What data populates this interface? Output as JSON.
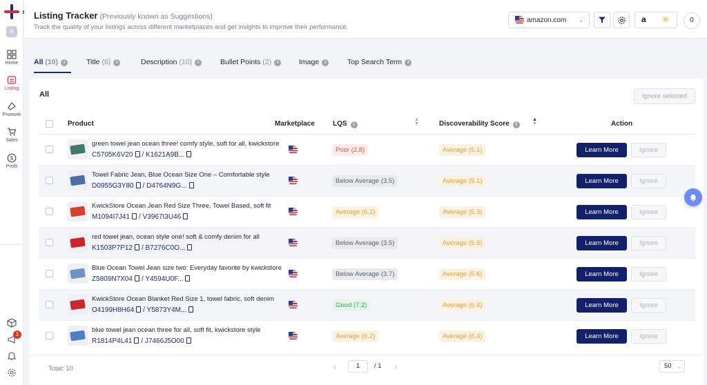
{
  "header": {
    "title": "Listing Tracker",
    "title_note": "(Previously known as Suggestions)",
    "subtitle": "Track the quality of your listings across different marketplaces and get insights to improve their performance.",
    "marketplace": "amazon.com",
    "counter": "0"
  },
  "sidebar": {
    "avatar": "R",
    "items": [
      {
        "label": "Home",
        "icon": "grid-icon"
      },
      {
        "label": "Listing",
        "icon": "listing-icon"
      },
      {
        "label": "Promote",
        "icon": "megaphone-icon"
      },
      {
        "label": "Sales",
        "icon": "cart-icon"
      },
      {
        "label": "Profit",
        "icon": "dollar-icon"
      }
    ],
    "notification_badge": "1"
  },
  "tabs": [
    {
      "label": "All",
      "count": "(10)"
    },
    {
      "label": "Title",
      "count": "(6)"
    },
    {
      "label": "Description",
      "count": "(10)"
    },
    {
      "label": "Bullet Points",
      "count": "(2)"
    },
    {
      "label": "Image",
      "count": ""
    },
    {
      "label": "Top Search Term",
      "count": ""
    }
  ],
  "card": {
    "title": "All",
    "ignore_selected": "Ignore selected"
  },
  "columns": {
    "product": "Product",
    "marketplace": "Marketplace",
    "lqs": "LQS",
    "discoverability": "Discoverability Score",
    "action": "Action"
  },
  "rows": [
    {
      "name": "green towel jean ocean three! comfy style, soft for all, kwickstore",
      "id1": "C5705K6V20",
      "id2": "/ K1621A9B...",
      "lqs": "Poor (2.8)",
      "disc": "Average (5.1)"
    },
    {
      "name": "Towel Fabric Jean, Blue Ocean Size One – Comfortable style",
      "id1": "D0955G3Y80",
      "id2": "/ D4764N9G...",
      "lqs": "Below Average (3.5)",
      "disc": "Average (5.1)"
    },
    {
      "name": "KwickStore Ocean Jean Red Size Three, Towel Based, soft fit",
      "id1": "M1094I7J41",
      "id2": "/ V3967I3U46",
      "lqs": "Average (6.2)",
      "disc": "Average (5.3)"
    },
    {
      "name": "red towel jean, ocean style one! soft & comfy denim for all",
      "id1": "K1503P7P12",
      "id2": "/ B7276C0O...",
      "lqs": "Below Average (3.5)",
      "disc": "Average (5.6)"
    },
    {
      "name": "Blue Ocean Towel Jean size two: Everyday favorite by kwickstore",
      "id1": "Z5809N7X04",
      "id2": "/ Y4594U0F...",
      "lqs": "Below Average (3.7)",
      "disc": "Average (5.6)"
    },
    {
      "name": "KwickStore Ocean Blanket Red Size 1, towel fabric, soft denim",
      "id1": "O4199H8H64",
      "id2": "/ Y5873Y4M...",
      "lqs": "Good (7.2)",
      "disc": "Average (6.4)"
    },
    {
      "name": "blue towel jean ocean three for all, soft fit, kwickstore style",
      "id1": "R1814P4L41",
      "id2": "/ J7466J5O00",
      "lqs": "Average (6.2)",
      "disc": "Average (6.4)"
    }
  ],
  "row_actions": {
    "learn_more": "Learn More",
    "ignore": "Ignore"
  },
  "thumb_colors": [
    "#3f7a6a",
    "#4a6fa8",
    "#d8402f",
    "#c9252b",
    "#6f94c4",
    "#c9282d",
    "#4f7ec8"
  ],
  "footer": {
    "total": "Total: 10",
    "page": "1",
    "of": "/ 1",
    "per_page": "50"
  },
  "colors": {
    "accent": "#13206b",
    "brand_red": "#d4303a",
    "poor": "#e0553f",
    "average": "#e8a13a",
    "good": "#3aa65a"
  }
}
